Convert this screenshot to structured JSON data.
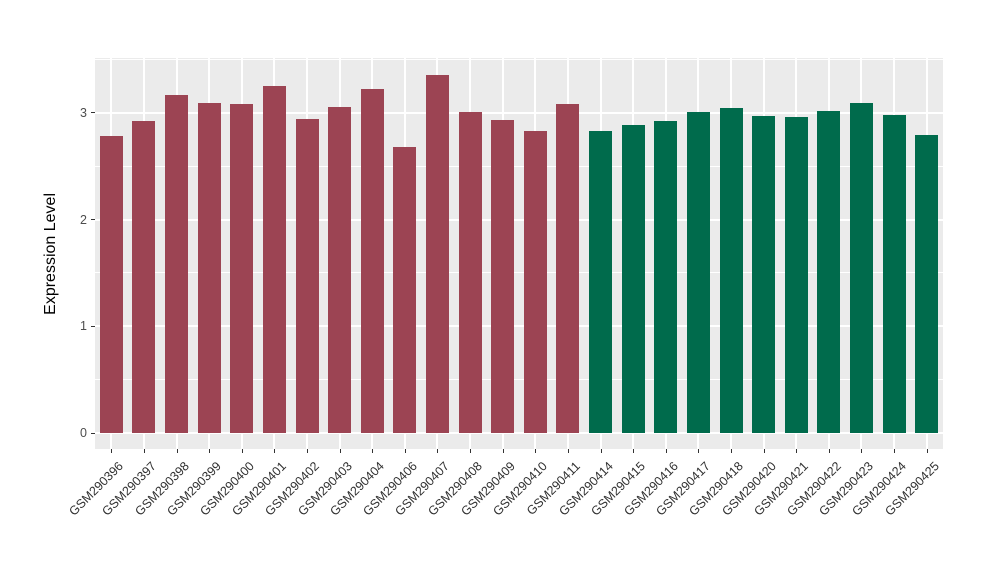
{
  "chart_data": {
    "type": "bar",
    "title": "",
    "xlabel": "",
    "ylabel": "Expression Level",
    "ylim": [
      0,
      3.5
    ],
    "yticks": [
      0,
      1,
      2,
      3
    ],
    "grid": "major and minor white gridlines on gray panel",
    "legend": "none",
    "panel_bg": "#EBEBEB",
    "grid_color": "#FFFFFF",
    "group_colors": {
      "group1": "#9C4453",
      "group2": "#006B4C"
    },
    "bars": [
      {
        "label": "GSM290396",
        "value": 2.78,
        "group": "group1"
      },
      {
        "label": "GSM290397",
        "value": 2.92,
        "group": "group1"
      },
      {
        "label": "GSM290398",
        "value": 3.17,
        "group": "group1"
      },
      {
        "label": "GSM290399",
        "value": 3.09,
        "group": "group1"
      },
      {
        "label": "GSM290400",
        "value": 3.08,
        "group": "group1"
      },
      {
        "label": "GSM290401",
        "value": 3.25,
        "group": "group1"
      },
      {
        "label": "GSM290402",
        "value": 2.94,
        "group": "group1"
      },
      {
        "label": "GSM290403",
        "value": 3.06,
        "group": "group1"
      },
      {
        "label": "GSM290404",
        "value": 3.22,
        "group": "group1"
      },
      {
        "label": "GSM290406",
        "value": 2.68,
        "group": "group1"
      },
      {
        "label": "GSM290407",
        "value": 3.36,
        "group": "group1"
      },
      {
        "label": "GSM290408",
        "value": 3.01,
        "group": "group1"
      },
      {
        "label": "GSM290409",
        "value": 2.93,
        "group": "group1"
      },
      {
        "label": "GSM290410",
        "value": 2.83,
        "group": "group1"
      },
      {
        "label": "GSM290411",
        "value": 3.08,
        "group": "group1"
      },
      {
        "label": "GSM290414",
        "value": 2.83,
        "group": "group2"
      },
      {
        "label": "GSM290415",
        "value": 2.89,
        "group": "group2"
      },
      {
        "label": "GSM290416",
        "value": 2.92,
        "group": "group2"
      },
      {
        "label": "GSM290417",
        "value": 3.01,
        "group": "group2"
      },
      {
        "label": "GSM290418",
        "value": 3.05,
        "group": "group2"
      },
      {
        "label": "GSM290420",
        "value": 2.97,
        "group": "group2"
      },
      {
        "label": "GSM290421",
        "value": 2.96,
        "group": "group2"
      },
      {
        "label": "GSM290422",
        "value": 3.02,
        "group": "group2"
      },
      {
        "label": "GSM290423",
        "value": 3.09,
        "group": "group2"
      },
      {
        "label": "GSM290424",
        "value": 2.98,
        "group": "group2"
      },
      {
        "label": "GSM290425",
        "value": 2.79,
        "group": "group2"
      }
    ]
  }
}
